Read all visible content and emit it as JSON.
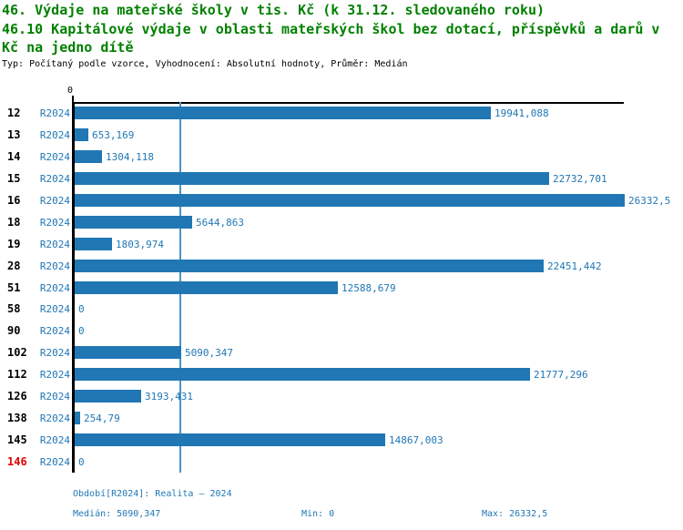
{
  "header": {
    "title_line1": "46. Výdaje na mateřské školy v tis. Kč (k 31.12. sledovaného roku)",
    "title_line2": "46.10 Kapitálové výdaje v oblasti mateřských škol bez dotací, příspěvků a darů v",
    "title_line3": "Kč na jedno dítě",
    "subtitle": "Typ: Počítaný podle vzorce, Vyhodnocení: Absolutní hodnoty, Průměr: Medián"
  },
  "chart_data": {
    "type": "bar",
    "orientation": "horizontal",
    "xlim": [
      0,
      26332.5
    ],
    "axis_tick_label": "0",
    "median_value": 5090.347,
    "grid": "median-line-only",
    "legend_position": "none",
    "bar_color": "#2077b4",
    "median_line_color": "#4a94c8",
    "highlight_color": "#e00000",
    "categories": [
      "12",
      "13",
      "14",
      "15",
      "16",
      "18",
      "19",
      "28",
      "51",
      "58",
      "90",
      "102",
      "112",
      "126",
      "138",
      "145",
      "146"
    ],
    "series_label": "R2024",
    "values": [
      19941.088,
      653.169,
      1304.118,
      22732.701,
      26332.5,
      5644.863,
      1803.974,
      22451.442,
      12588.679,
      0,
      0,
      5090.347,
      21777.296,
      3193.431,
      254.79,
      14867.003,
      0
    ],
    "rows": [
      {
        "id": "12",
        "series": "R2024",
        "value": 19941.088,
        "label": "19941,088",
        "highlight": false
      },
      {
        "id": "13",
        "series": "R2024",
        "value": 653.169,
        "label": "653,169",
        "highlight": false
      },
      {
        "id": "14",
        "series": "R2024",
        "value": 1304.118,
        "label": "1304,118",
        "highlight": false
      },
      {
        "id": "15",
        "series": "R2024",
        "value": 22732.701,
        "label": "22732,701",
        "highlight": false
      },
      {
        "id": "16",
        "series": "R2024",
        "value": 26332.5,
        "label": "26332,5",
        "highlight": false
      },
      {
        "id": "18",
        "series": "R2024",
        "value": 5644.863,
        "label": "5644,863",
        "highlight": false
      },
      {
        "id": "19",
        "series": "R2024",
        "value": 1803.974,
        "label": "1803,974",
        "highlight": false
      },
      {
        "id": "28",
        "series": "R2024",
        "value": 22451.442,
        "label": "22451,442",
        "highlight": false
      },
      {
        "id": "51",
        "series": "R2024",
        "value": 12588.679,
        "label": "12588,679",
        "highlight": false
      },
      {
        "id": "58",
        "series": "R2024",
        "value": 0,
        "label": "0",
        "highlight": false
      },
      {
        "id": "90",
        "series": "R2024",
        "value": 0,
        "label": "0",
        "highlight": false
      },
      {
        "id": "102",
        "series": "R2024",
        "value": 5090.347,
        "label": "5090,347",
        "highlight": false
      },
      {
        "id": "112",
        "series": "R2024",
        "value": 21777.296,
        "label": "21777,296",
        "highlight": false
      },
      {
        "id": "126",
        "series": "R2024",
        "value": 3193.431,
        "label": "3193,431",
        "highlight": false
      },
      {
        "id": "138",
        "series": "R2024",
        "value": 254.79,
        "label": "254,79",
        "highlight": false
      },
      {
        "id": "145",
        "series": "R2024",
        "value": 14867.003,
        "label": "14867,003",
        "highlight": false
      },
      {
        "id": "146",
        "series": "R2024",
        "value": 0,
        "label": "0",
        "highlight": true
      }
    ]
  },
  "footer": {
    "period": "Období[R2024]: Realita – 2024",
    "median": "Medián: 5090,347",
    "min": "Min: 0",
    "max": "Max: 26332,5"
  }
}
